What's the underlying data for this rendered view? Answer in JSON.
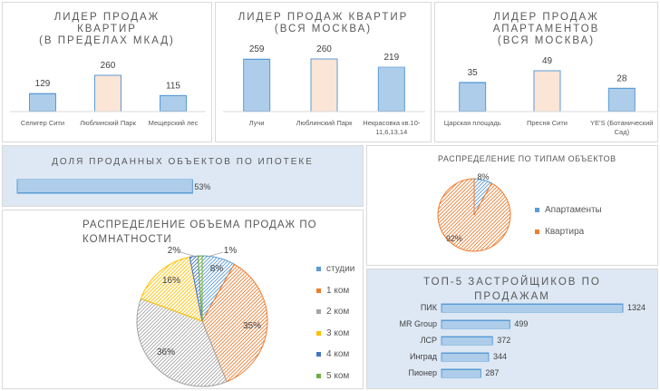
{
  "colors": {
    "blue": "#5b9bd5",
    "orange": "#ed7d31",
    "peach": "#fbe5d6",
    "gray": "#a5a5a5",
    "gold": "#ffc000",
    "navy": "#4472c4",
    "green": "#70ad47",
    "panel_bg": "#dde8f4"
  },
  "panels": {
    "p1": {
      "title": "Лидер продаж\nквартир\n(в пределах МКАД)"
    },
    "p2": {
      "title": "Лидер продаж квартир\n(вся Москва)"
    },
    "p3": {
      "title": "Лидер продаж\nапартаментов\n(вся Москва)"
    },
    "p4": {
      "title": "Доля проданных объектов по ипотеке"
    },
    "p5": {
      "title": "Распределение по типам объектов"
    },
    "p6": {
      "title": "Распределение объема продаж по\nкомнатности"
    },
    "p7": {
      "title": "Топ-5 застройщиков по\nпродажам"
    }
  },
  "chart_data": [
    {
      "id": "c1",
      "type": "bar",
      "categories": [
        "Селигер Сити",
        "Люблинский Парк",
        "Мещерский лес"
      ],
      "values": [
        129,
        260,
        115
      ],
      "highlight": 1
    },
    {
      "id": "c2",
      "type": "bar",
      "categories": [
        "Лучи",
        "Люблинский Парк",
        "Некрасовка кв.10-\n11,6,13,14"
      ],
      "values": [
        259,
        260,
        219
      ],
      "highlight": 1
    },
    {
      "id": "c3",
      "type": "bar",
      "categories": [
        "Царская площадь",
        "Пресня Сити",
        "YE'S (Ботанический\nСад)"
      ],
      "values": [
        35,
        49,
        28
      ],
      "highlight": 1
    },
    {
      "id": "c4",
      "type": "bar",
      "orientation": "horizontal",
      "values": [
        53
      ],
      "labels": [
        "53%"
      ],
      "xlim": [
        0,
        100
      ]
    },
    {
      "id": "c5",
      "type": "pie",
      "series": [
        {
          "name": "Апартаменты",
          "value": 8,
          "label": "8%"
        },
        {
          "name": "Квартира",
          "value": 92,
          "label": "92%"
        }
      ]
    },
    {
      "id": "c6",
      "type": "pie",
      "series": [
        {
          "name": "студии",
          "value": 8,
          "label": "8%"
        },
        {
          "name": "1 ком",
          "value": 35,
          "label": "35%"
        },
        {
          "name": "2 ком",
          "value": 36,
          "label": "36%"
        },
        {
          "name": "3 ком",
          "value": 16,
          "label": "16%"
        },
        {
          "name": "4 ком",
          "value": 2,
          "label": "2%"
        },
        {
          "name": "5 ком",
          "value": 1,
          "label": "1%"
        }
      ]
    },
    {
      "id": "c7",
      "type": "bar",
      "orientation": "horizontal",
      "categories": [
        "ПИК",
        "MR Group",
        "ЛСР",
        "Инград",
        "Пионер"
      ],
      "values": [
        1324,
        499,
        372,
        344,
        287
      ]
    }
  ]
}
